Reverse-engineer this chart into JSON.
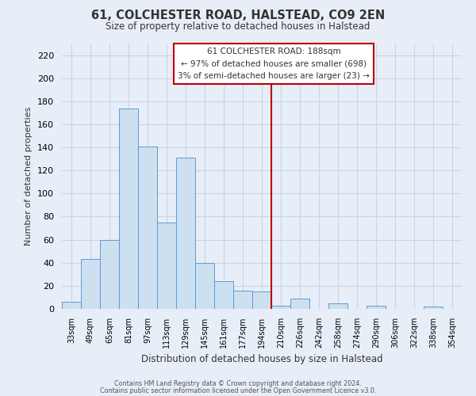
{
  "title": "61, COLCHESTER ROAD, HALSTEAD, CO9 2EN",
  "subtitle": "Size of property relative to detached houses in Halstead",
  "xlabel": "Distribution of detached houses by size in Halstead",
  "ylabel": "Number of detached properties",
  "bin_labels": [
    "33sqm",
    "49sqm",
    "65sqm",
    "81sqm",
    "97sqm",
    "113sqm",
    "129sqm",
    "145sqm",
    "161sqm",
    "177sqm",
    "194sqm",
    "210sqm",
    "226sqm",
    "242sqm",
    "258sqm",
    "274sqm",
    "290sqm",
    "306sqm",
    "322sqm",
    "338sqm",
    "354sqm"
  ],
  "bar_values": [
    6,
    43,
    60,
    174,
    141,
    75,
    131,
    40,
    24,
    16,
    15,
    3,
    9,
    0,
    5,
    0,
    3,
    0,
    0,
    2,
    0
  ],
  "bar_color": "#cce0f0",
  "bar_edge_color": "#5b9bd5",
  "ylim": [
    0,
    230
  ],
  "yticks": [
    0,
    20,
    40,
    60,
    80,
    100,
    120,
    140,
    160,
    180,
    200,
    220
  ],
  "vline_x": 10.5,
  "vline_color": "#bb0000",
  "annotation_title": "61 COLCHESTER ROAD: 188sqm",
  "annotation_line1": "← 97% of detached houses are smaller (698)",
  "annotation_line2": "3% of semi-detached houses are larger (23) →",
  "footer_line1": "Contains HM Land Registry data © Crown copyright and database right 2024.",
  "footer_line2": "Contains public sector information licensed under the Open Government Licence v3.0.",
  "background_color": "#e8eef8",
  "grid_color": "#c8d4e8",
  "title_color": "#333333",
  "text_color": "#333333"
}
